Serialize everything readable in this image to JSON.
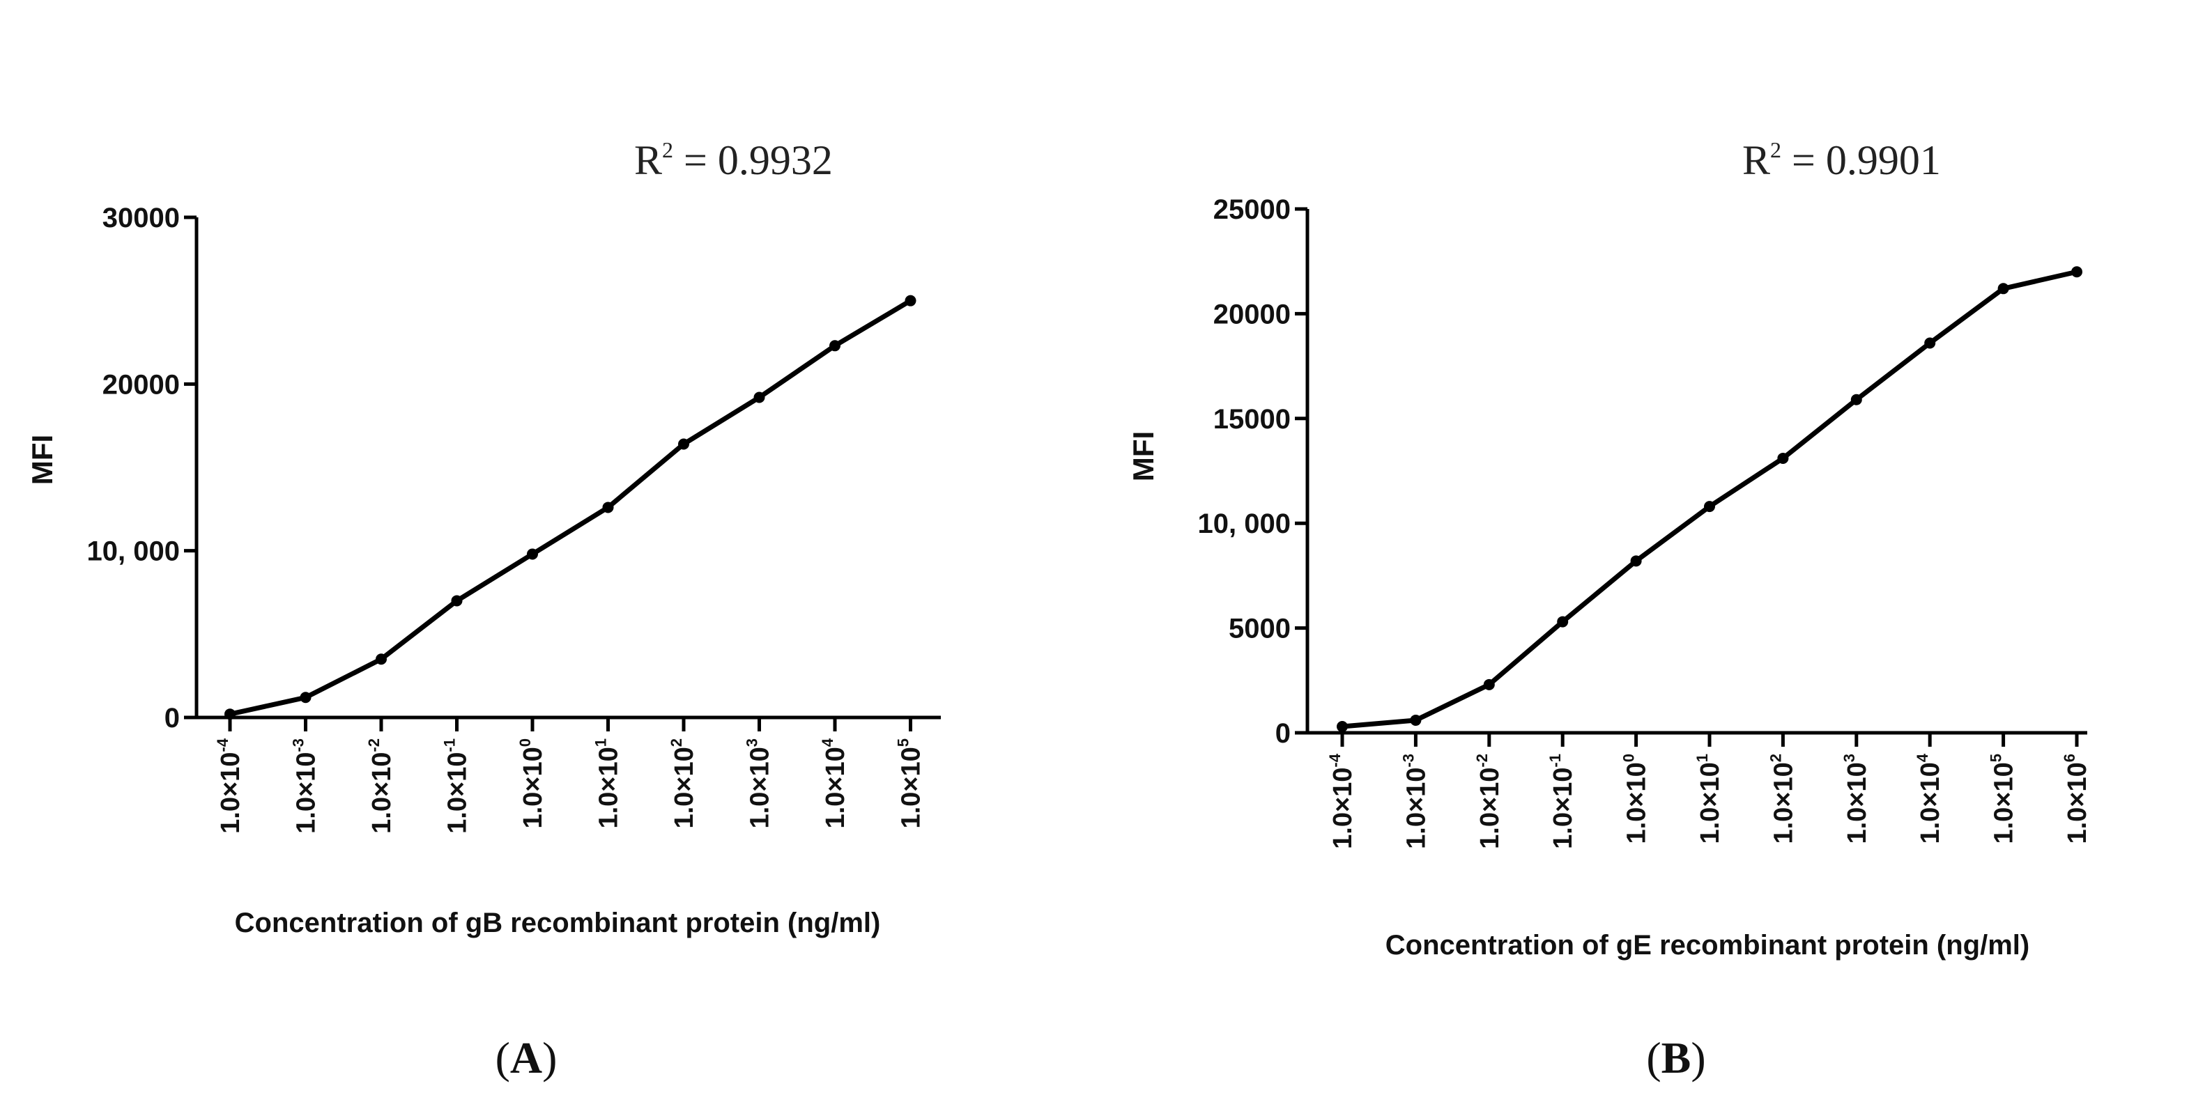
{
  "chart_data": [
    {
      "type": "line",
      "panel": "(A)",
      "panel_letter": "A",
      "annotation": "R² = 0.9932",
      "annotation_parts": {
        "base": "R",
        "sup": "2",
        "rest": " = 0.9932"
      },
      "xlabel": "Concentration of gB recombinant protein (ng/ml)",
      "ylabel": "MFI",
      "ylim": [
        0,
        30000
      ],
      "yticks": [
        {
          "value": 0,
          "label": "0"
        },
        {
          "value": 10000,
          "label": "10, 000"
        },
        {
          "value": 20000,
          "label": "20000"
        },
        {
          "value": 30000,
          "label": "30000"
        }
      ],
      "categories": [
        {
          "base": "1.0×10",
          "exp": "-4"
        },
        {
          "base": "1.0×10",
          "exp": "-3"
        },
        {
          "base": "1.0×10",
          "exp": "-2"
        },
        {
          "base": "1.0×10",
          "exp": "-1"
        },
        {
          "base": "1.0×10",
          "exp": "0"
        },
        {
          "base": "1.0×10",
          "exp": "1"
        },
        {
          "base": "1.0×10",
          "exp": "2"
        },
        {
          "base": "1.0×10",
          "exp": "3"
        },
        {
          "base": "1.0×10",
          "exp": "4"
        },
        {
          "base": "1.0×10",
          "exp": "5"
        }
      ],
      "values": [
        200,
        1200,
        3500,
        7000,
        9800,
        12600,
        16400,
        19200,
        22300,
        25000
      ]
    },
    {
      "type": "line",
      "panel": "(B)",
      "panel_letter": "B",
      "annotation": "R² = 0.9901",
      "annotation_parts": {
        "base": "R",
        "sup": "2",
        "rest": " = 0.9901"
      },
      "xlabel": "Concentration of gE recombinant protein (ng/ml)",
      "ylabel": "MFI",
      "ylim": [
        0,
        25000
      ],
      "yticks": [
        {
          "value": 0,
          "label": "0"
        },
        {
          "value": 5000,
          "label": "5000"
        },
        {
          "value": 10000,
          "label": "10, 000"
        },
        {
          "value": 15000,
          "label": "15000"
        },
        {
          "value": 20000,
          "label": "20000"
        },
        {
          "value": 25000,
          "label": "25000"
        }
      ],
      "categories": [
        {
          "base": "1.0×10",
          "exp": "-4"
        },
        {
          "base": "1.0×10",
          "exp": "-3"
        },
        {
          "base": "1.0×10",
          "exp": "-2"
        },
        {
          "base": "1.0×10",
          "exp": "-1"
        },
        {
          "base": "1.0×10",
          "exp": "0"
        },
        {
          "base": "1.0×10",
          "exp": "1"
        },
        {
          "base": "1.0×10",
          "exp": "2"
        },
        {
          "base": "1.0×10",
          "exp": "3"
        },
        {
          "base": "1.0×10",
          "exp": "4"
        },
        {
          "base": "1.0×10",
          "exp": "5"
        },
        {
          "base": "1.0×10",
          "exp": "6"
        }
      ],
      "values": [
        300,
        600,
        2300,
        5300,
        8200,
        10800,
        13100,
        15900,
        18600,
        21200,
        22000
      ]
    }
  ]
}
